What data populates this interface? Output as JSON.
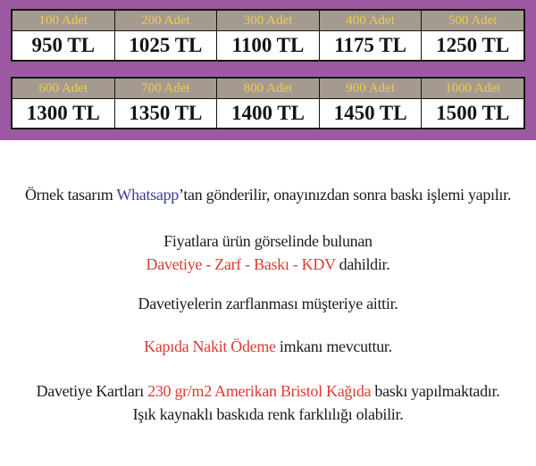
{
  "table": {
    "rows": [
      {
        "cells": [
          {
            "qty": "100 Adet",
            "price": "950 TL"
          },
          {
            "qty": "200 Adet",
            "price": "1025 TL"
          },
          {
            "qty": "300 Adet",
            "price": "1100 TL"
          },
          {
            "qty": "400 Adet",
            "price": "1175 TL"
          },
          {
            "qty": "500 Adet",
            "price": "1250 TL"
          }
        ]
      },
      {
        "cells": [
          {
            "qty": "600 Adet",
            "price": "1300 TL"
          },
          {
            "qty": "700 Adet",
            "price": "1350 TL"
          },
          {
            "qty": "800 Adet",
            "price": "1400 TL"
          },
          {
            "qty": "900 Adet",
            "price": "1450 TL"
          },
          {
            "qty": "1000 Adet",
            "price": "1500 TL"
          }
        ]
      }
    ]
  },
  "notes": {
    "sample": {
      "pre": "Örnek tasarım ",
      "brand": "Whatsapp",
      "post": "’tan gönderilir, onayınızdan sonra baskı işlemi yapılır."
    },
    "includes_intro": "Fiyatlara ürün görselinde bulunan",
    "includes": {
      "red": "Davetiye - Zarf - Baskı - KDV",
      "black": " dahildir."
    },
    "envelope": "Davetiyelerin zarflanması müşteriye aittir.",
    "cash": {
      "red": "Kapıda Nakit Ödeme",
      "black": " imkanı mevcuttur."
    },
    "paper": {
      "pre": "Davetiye Kartları ",
      "red": "230 gr/m2 Amerikan Bristol Kağıda",
      "post": " baskı yapılmaktadır."
    },
    "color_warning": "Işık kaynaklı baskıda renk farklılığı olabilir."
  },
  "colors": {
    "background_purple": "#9c59a1",
    "header_taupe": "#a49a90",
    "header_yellow": "#f0cd4b",
    "accent_red": "#dc3a31",
    "brand_blue": "#3e3c94",
    "border_black": "#141414"
  }
}
